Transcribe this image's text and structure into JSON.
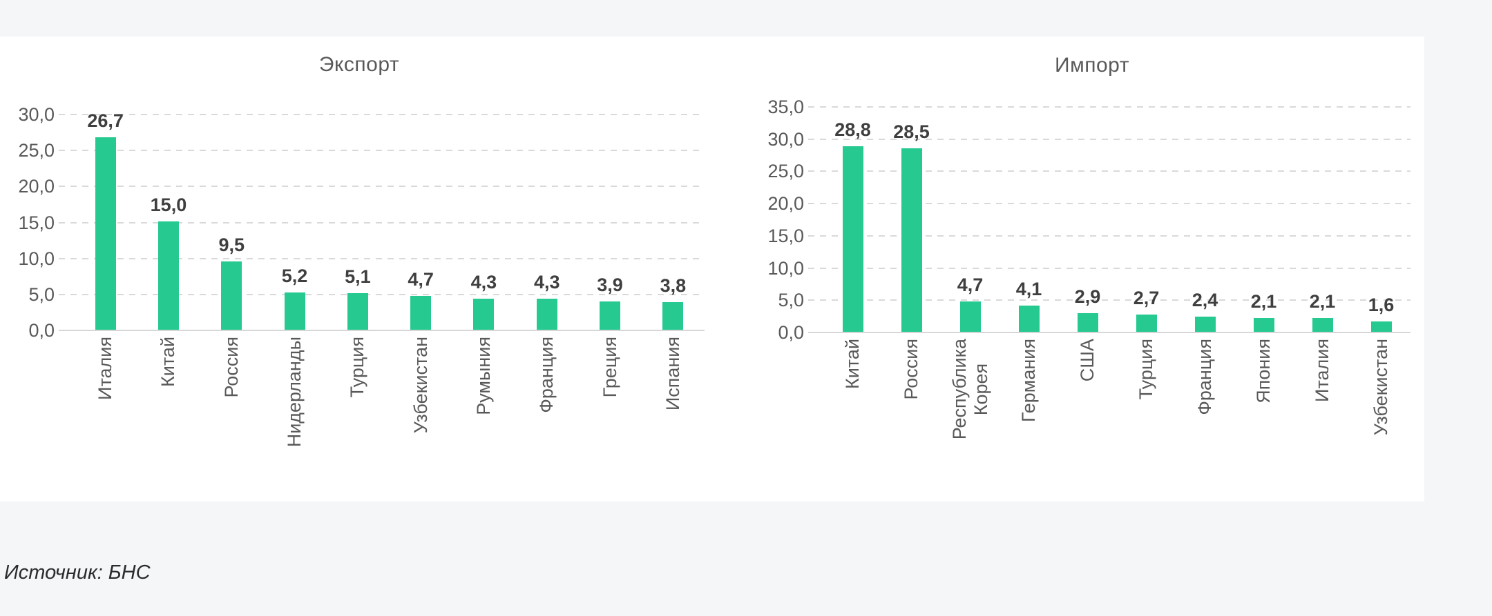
{
  "page": {
    "background_color": "#f5f6f8",
    "panel_color": "#ffffff",
    "bar_color": "#26ca90",
    "grid_color": "#d9d9d9",
    "axis_text_color": "#595959"
  },
  "source_note": "Источник: БНС",
  "chart_data": [
    {
      "type": "bar",
      "title": "Экспорт",
      "categories": [
        "Италия",
        "Китай",
        "Россия",
        "Нидерланды",
        "Турция",
        "Узбекистан",
        "Румыния",
        "Франция",
        "Греция",
        "Испания"
      ],
      "values": [
        26.7,
        15.0,
        9.5,
        5.2,
        5.1,
        4.7,
        4.3,
        4.3,
        3.9,
        3.8
      ],
      "value_labels": [
        "26,7",
        "15,0",
        "9,5",
        "5,2",
        "5,1",
        "4,7",
        "4,3",
        "4,3",
        "3,9",
        "3,8"
      ],
      "y_ticks": [
        "30,0",
        "25,0",
        "20,0",
        "15,0",
        "10,0",
        "5,0",
        "0,0"
      ],
      "ylim": [
        0,
        30
      ],
      "xlabel": "",
      "ylabel": "",
      "grid": "horizontal-dashed",
      "legend": "none",
      "bar_color": "#26ca90",
      "category_label_rotation_deg": -90,
      "decimal_separator": ","
    },
    {
      "type": "bar",
      "title": "Импорт",
      "categories": [
        "Китай",
        "Россия",
        "Республика\nКорея",
        "Германия",
        "США",
        "Турция",
        "Франция",
        "Япония",
        "Италия",
        "Узбекистан"
      ],
      "values": [
        28.8,
        28.5,
        4.7,
        4.1,
        2.9,
        2.7,
        2.4,
        2.1,
        2.1,
        1.6
      ],
      "value_labels": [
        "28,8",
        "28,5",
        "4,7",
        "4,1",
        "2,9",
        "2,7",
        "2,4",
        "2,1",
        "2,1",
        "1,6"
      ],
      "y_ticks": [
        "35,0",
        "30,0",
        "25,0",
        "20,0",
        "15,0",
        "10,0",
        "5,0",
        "0,0"
      ],
      "ylim": [
        0,
        35
      ],
      "xlabel": "",
      "ylabel": "",
      "grid": "horizontal-dashed",
      "legend": "none",
      "bar_color": "#26ca90",
      "category_label_rotation_deg": -90,
      "decimal_separator": ","
    }
  ]
}
